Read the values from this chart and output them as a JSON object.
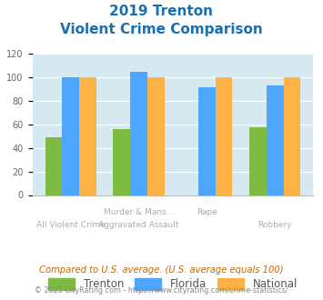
{
  "title_line1": "2019 Trenton",
  "title_line2": "Violent Crime Comparison",
  "series": {
    "Trenton": [
      49,
      56,
      0,
      58
    ],
    "Florida": [
      100,
      105,
      92,
      93
    ],
    "National": [
      100,
      100,
      100,
      100
    ]
  },
  "colors": {
    "Trenton": "#7dbb42",
    "Florida": "#4da6ff",
    "National": "#ffb347"
  },
  "ylim": [
    0,
    120
  ],
  "yticks": [
    0,
    20,
    40,
    60,
    80,
    100,
    120
  ],
  "title_color": "#1a6faf",
  "bg_color": "#d6e8f0",
  "cat_top": [
    "",
    "Murder & Mans...",
    "Rape",
    ""
  ],
  "cat_bot": [
    "All Violent Crime",
    "Aggravated Assault",
    "",
    "Robbery"
  ],
  "footnote1": "Compared to U.S. average. (U.S. average equals 100)",
  "footnote2": "© 2025 CityRating.com - https://www.cityrating.com/crime-statistics/",
  "footnote1_color": "#cc6600",
  "footnote2_color": "#888888",
  "label_color": "#aaaabb"
}
